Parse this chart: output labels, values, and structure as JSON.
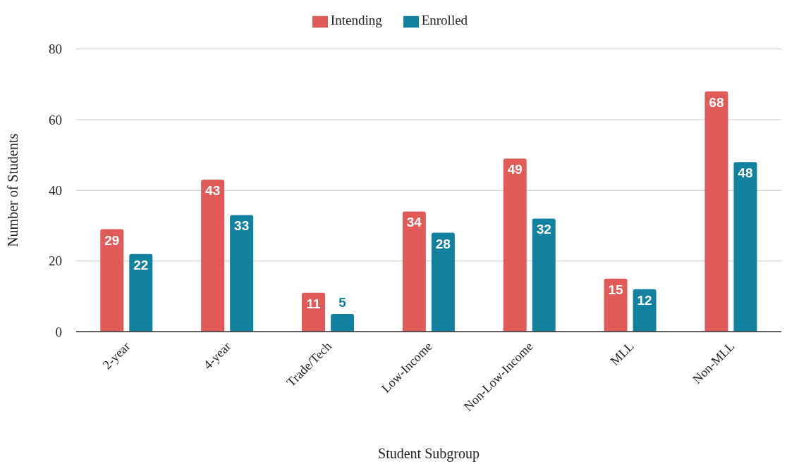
{
  "chart_data": {
    "type": "bar",
    "xlabel": "Student Subgroup",
    "ylabel": "Number of Students",
    "categories": [
      "2-year",
      "4-year",
      "Trade/Tech",
      "Low-Income",
      "Non-Low-Income",
      "MLL",
      "Non-MLL"
    ],
    "series": [
      {
        "name": "Intending",
        "color": "#e05b57",
        "values": [
          29,
          43,
          11,
          34,
          49,
          15,
          68
        ]
      },
      {
        "name": "Enrolled",
        "color": "#12809f",
        "values": [
          22,
          33,
          5,
          28,
          32,
          12,
          48
        ]
      }
    ],
    "ylim": [
      0,
      80
    ],
    "yticks": [
      0,
      20,
      40,
      60,
      80
    ],
    "grid": "y",
    "legend": "top",
    "data_labels": true
  }
}
